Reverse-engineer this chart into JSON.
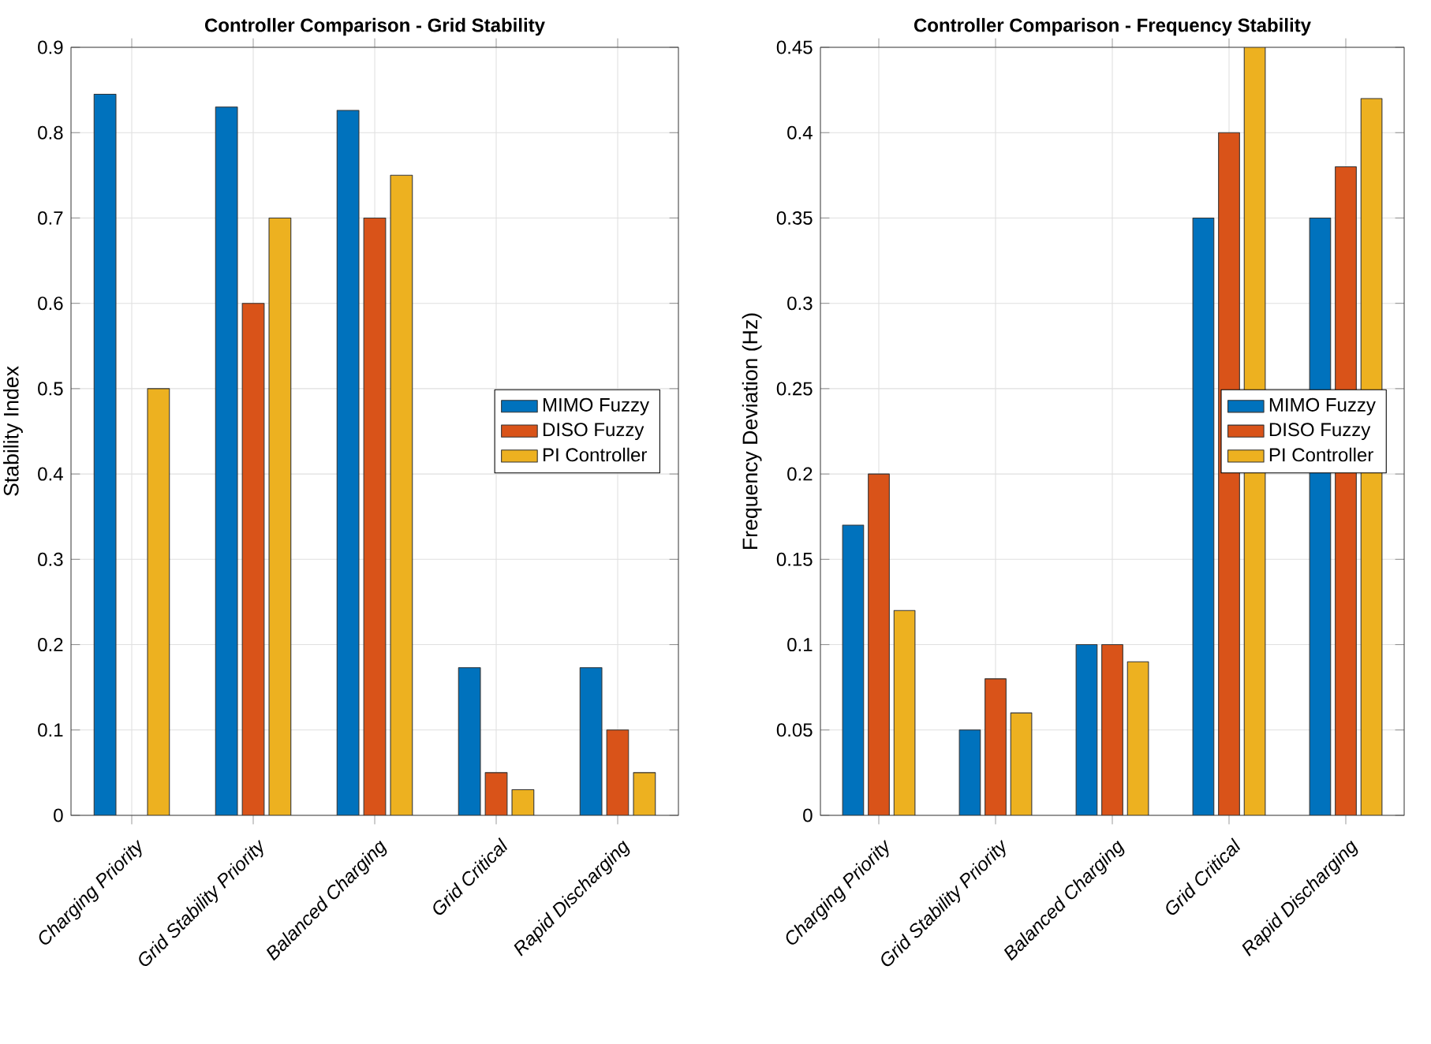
{
  "chart_data": [
    {
      "type": "bar",
      "title": "Controller Comparison - Grid Stability",
      "ylabel": "Stability Index",
      "categories": [
        "Charging Priority",
        "Grid Stability Priority",
        "Balanced Charging",
        "Grid Critical",
        "Rapid Discharging"
      ],
      "series": [
        {
          "name": "MIMO Fuzzy",
          "color": "#0072bd",
          "values": [
            0.845,
            0.83,
            0.826,
            0.173,
            0.173
          ]
        },
        {
          "name": "DISO Fuzzy",
          "color": "#d95319",
          "values": [
            null,
            0.6,
            0.7,
            0.05,
            0.1
          ]
        },
        {
          "name": "PI Controller",
          "color": "#edb120",
          "values": [
            0.5,
            0.7,
            0.75,
            0.03,
            0.05
          ]
        }
      ],
      "ylim": [
        0,
        0.9
      ],
      "yticks": [
        0,
        0.1,
        0.2,
        0.3,
        0.4,
        0.5,
        0.6,
        0.7,
        0.8,
        0.9
      ],
      "grid": true,
      "legend": "right"
    },
    {
      "type": "bar",
      "title": "Controller Comparison - Frequency Stability",
      "ylabel": "Frequency Deviation (Hz)",
      "categories": [
        "Charging Priority",
        "Grid Stability Priority",
        "Balanced Charging",
        "Grid Critical",
        "Rapid Discharging"
      ],
      "series": [
        {
          "name": "MIMO Fuzzy",
          "color": "#0072bd",
          "values": [
            0.17,
            0.05,
            0.1,
            0.35,
            0.35
          ]
        },
        {
          "name": "DISO Fuzzy",
          "color": "#d95319",
          "values": [
            0.2,
            0.08,
            0.1,
            0.4,
            0.38
          ]
        },
        {
          "name": "PI Controller",
          "color": "#edb120",
          "values": [
            0.12,
            0.06,
            0.09,
            0.45,
            0.42
          ]
        }
      ],
      "ylim": [
        0,
        0.45
      ],
      "yticks": [
        0,
        0.05,
        0.1,
        0.15,
        0.2,
        0.25,
        0.3,
        0.35,
        0.4,
        0.45
      ],
      "grid": true,
      "legend": "right"
    }
  ]
}
